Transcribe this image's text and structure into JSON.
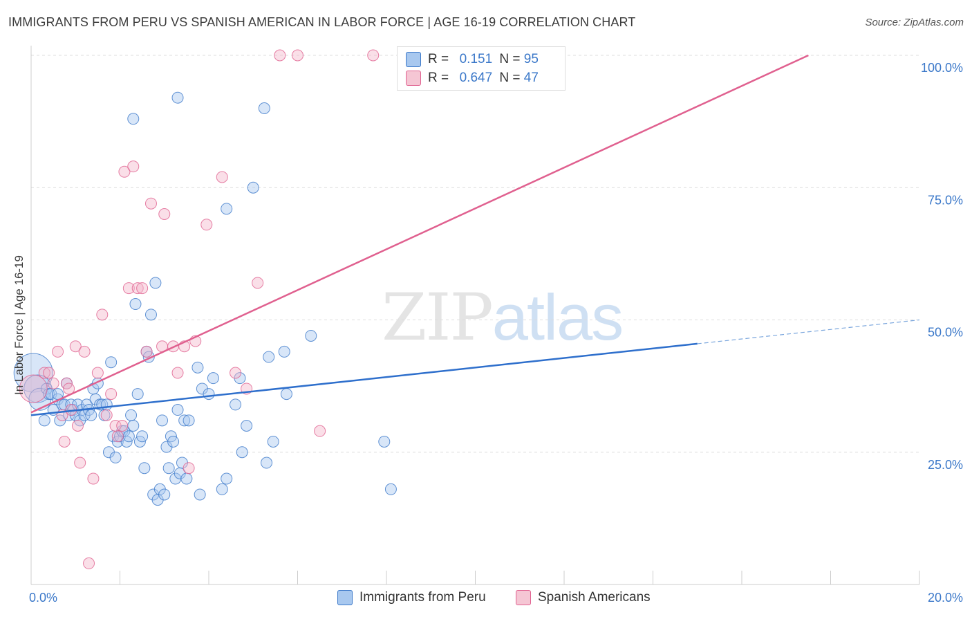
{
  "title": "IMMIGRANTS FROM PERU VS SPANISH AMERICAN IN LABOR FORCE | AGE 16-19 CORRELATION CHART",
  "source": "Source: ZipAtlas.com",
  "watermark": {
    "zip": "ZIP",
    "atlas": "atlas"
  },
  "colors": {
    "blue": "#3b78c9",
    "blue_fill": "#a8c8ef",
    "pink": "#e0608f",
    "pink_fill": "#f5b8cb"
  },
  "legend": {
    "rows": [
      {
        "r_label": "R =",
        "r_value": "0.151",
        "n_label": "N =",
        "n_value": "95"
      },
      {
        "r_label": "R =",
        "r_value": "0.647",
        "n_label": "N =",
        "n_value": "47"
      }
    ]
  },
  "bottom_legend": [
    "Immigrants from Peru",
    "Spanish Americans"
  ],
  "chart_data": {
    "type": "scatter",
    "xlabel": "",
    "ylabel": "In Labor Force | Age 16-19",
    "xlim": [
      0,
      20
    ],
    "ylim": [
      0,
      100
    ],
    "x_tick_labels": [
      "0.0%",
      "20.0%"
    ],
    "y_tick_labels": [
      "25.0%",
      "50.0%",
      "75.0%",
      "100.0%"
    ],
    "y_ticks": [
      25,
      50,
      75,
      100
    ],
    "grid": true,
    "series": [
      {
        "name": "Immigrants from Peru",
        "color": "#3b78c9",
        "trend": {
          "x": [
            0,
            15
          ],
          "y": [
            32,
            45.5
          ],
          "dashed_to": [
            20,
            50
          ]
        },
        "points": [
          [
            0.05,
            40,
            3
          ],
          [
            0.15,
            37,
            2
          ],
          [
            0.2,
            35,
            1.5
          ],
          [
            0.3,
            31,
            1
          ],
          [
            0.35,
            37,
            1
          ],
          [
            0.4,
            36,
            1
          ],
          [
            0.45,
            36,
            1
          ],
          [
            0.5,
            33,
            1
          ],
          [
            0.6,
            35,
            1
          ],
          [
            0.6,
            36,
            1
          ],
          [
            0.65,
            31,
            1
          ],
          [
            0.7,
            34,
            1
          ],
          [
            0.75,
            34,
            1
          ],
          [
            0.8,
            38,
            1
          ],
          [
            0.85,
            32,
            1
          ],
          [
            0.9,
            34,
            1
          ],
          [
            0.95,
            33,
            1
          ],
          [
            1.0,
            32,
            1
          ],
          [
            1.05,
            34,
            1
          ],
          [
            1.1,
            31,
            1
          ],
          [
            1.15,
            33,
            1
          ],
          [
            1.2,
            32,
            1
          ],
          [
            1.25,
            34,
            1
          ],
          [
            1.3,
            33,
            1
          ],
          [
            1.35,
            32,
            1
          ],
          [
            1.4,
            37,
            1
          ],
          [
            1.45,
            35,
            1
          ],
          [
            1.5,
            38,
            1
          ],
          [
            1.55,
            34,
            1
          ],
          [
            1.6,
            34,
            1
          ],
          [
            1.65,
            32,
            1
          ],
          [
            1.7,
            34,
            1
          ],
          [
            1.75,
            25,
            1
          ],
          [
            1.8,
            42,
            1
          ],
          [
            1.85,
            28,
            1
          ],
          [
            1.9,
            24,
            1
          ],
          [
            1.95,
            27,
            1
          ],
          [
            2.0,
            28,
            1
          ],
          [
            2.05,
            29,
            1
          ],
          [
            2.1,
            29,
            1
          ],
          [
            2.15,
            27,
            1
          ],
          [
            2.2,
            28,
            1
          ],
          [
            2.25,
            32,
            1
          ],
          [
            2.3,
            30,
            1
          ],
          [
            2.35,
            53,
            1
          ],
          [
            2.4,
            36,
            1
          ],
          [
            2.45,
            27,
            1
          ],
          [
            2.5,
            28,
            1
          ],
          [
            2.55,
            22,
            1
          ],
          [
            2.6,
            44,
            1
          ],
          [
            2.65,
            43,
            1
          ],
          [
            2.7,
            51,
            1
          ],
          [
            2.75,
            17,
            1
          ],
          [
            2.8,
            57,
            1
          ],
          [
            2.85,
            16,
            1
          ],
          [
            2.9,
            18,
            1
          ],
          [
            2.95,
            31,
            1
          ],
          [
            3.0,
            17,
            1
          ],
          [
            3.05,
            26,
            1
          ],
          [
            3.1,
            22,
            1
          ],
          [
            3.15,
            28,
            1
          ],
          [
            3.2,
            27,
            1
          ],
          [
            3.25,
            20,
            1
          ],
          [
            3.3,
            33,
            1
          ],
          [
            3.35,
            21,
            1
          ],
          [
            3.4,
            23,
            1
          ],
          [
            3.45,
            31,
            1
          ],
          [
            3.5,
            20,
            1
          ],
          [
            3.55,
            31,
            1
          ],
          [
            3.75,
            41,
            1
          ],
          [
            3.8,
            17,
            1
          ],
          [
            3.85,
            37,
            1
          ],
          [
            4.0,
            36,
            1
          ],
          [
            4.1,
            39,
            1
          ],
          [
            4.3,
            18,
            1
          ],
          [
            4.4,
            20,
            1
          ],
          [
            4.4,
            71,
            1
          ],
          [
            4.6,
            34,
            1
          ],
          [
            4.7,
            39,
            1
          ],
          [
            4.75,
            25,
            1
          ],
          [
            4.85,
            30,
            1
          ],
          [
            5.0,
            75,
            1
          ],
          [
            5.3,
            23,
            1
          ],
          [
            5.35,
            43,
            1
          ],
          [
            5.45,
            27,
            1
          ],
          [
            5.7,
            44,
            1
          ],
          [
            5.75,
            36,
            1
          ],
          [
            6.3,
            47,
            1
          ],
          [
            7.95,
            27,
            1
          ],
          [
            8.1,
            18,
            1
          ],
          [
            3.3,
            92,
            1
          ],
          [
            5.25,
            90,
            1
          ],
          [
            2.3,
            88,
            1
          ]
        ]
      },
      {
        "name": "Spanish Americans",
        "color": "#e0608f",
        "trend": {
          "x": [
            0,
            17.5
          ],
          "y": [
            32.5,
            100
          ]
        },
        "points": [
          [
            0.05,
            37,
            2
          ],
          [
            0.3,
            40,
            1
          ],
          [
            0.4,
            40,
            1
          ],
          [
            0.5,
            38,
            1
          ],
          [
            0.6,
            44,
            1
          ],
          [
            0.7,
            32,
            1
          ],
          [
            0.75,
            27,
            1
          ],
          [
            0.8,
            38,
            1
          ],
          [
            0.85,
            37,
            1
          ],
          [
            0.9,
            33,
            1
          ],
          [
            1.0,
            45,
            1
          ],
          [
            1.05,
            30,
            1
          ],
          [
            1.1,
            23,
            1
          ],
          [
            1.2,
            44,
            1
          ],
          [
            1.3,
            4,
            1
          ],
          [
            1.4,
            20,
            1
          ],
          [
            1.5,
            40,
            1
          ],
          [
            1.6,
            51,
            1
          ],
          [
            1.7,
            32,
            1
          ],
          [
            1.8,
            36,
            1
          ],
          [
            1.9,
            30,
            1
          ],
          [
            1.95,
            28,
            1
          ],
          [
            2.1,
            78,
            1
          ],
          [
            2.2,
            56,
            1
          ],
          [
            2.3,
            79,
            1
          ],
          [
            2.4,
            56,
            1
          ],
          [
            2.5,
            56,
            1
          ],
          [
            2.6,
            44,
            1
          ],
          [
            2.7,
            72,
            1
          ],
          [
            3.0,
            70,
            1
          ],
          [
            3.2,
            45,
            1
          ],
          [
            3.3,
            40,
            1
          ],
          [
            3.55,
            22,
            1
          ],
          [
            3.7,
            46,
            1
          ],
          [
            3.95,
            68,
            1
          ],
          [
            4.3,
            77,
            1
          ],
          [
            4.6,
            40,
            1
          ],
          [
            4.85,
            37,
            1
          ],
          [
            5.1,
            57,
            1
          ],
          [
            5.6,
            100,
            1
          ],
          [
            6.0,
            100,
            1
          ],
          [
            6.5,
            29,
            1
          ],
          [
            7.7,
            100,
            1
          ],
          [
            8.6,
            100,
            1
          ],
          [
            3.45,
            45,
            1
          ],
          [
            2.95,
            45,
            1
          ],
          [
            2.05,
            30,
            1
          ]
        ]
      }
    ]
  }
}
